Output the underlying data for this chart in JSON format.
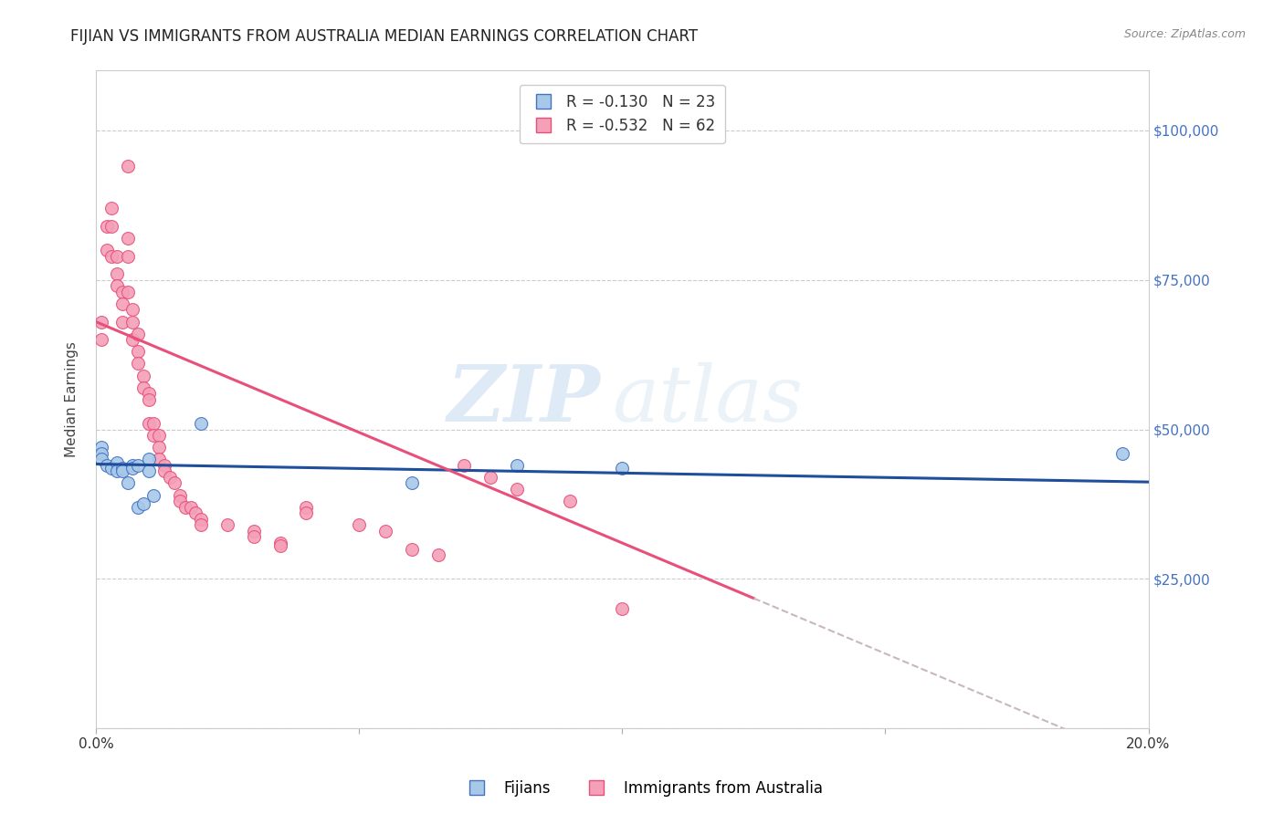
{
  "title": "FIJIAN VS IMMIGRANTS FROM AUSTRALIA MEDIAN EARNINGS CORRELATION CHART",
  "source": "Source: ZipAtlas.com",
  "ylabel": "Median Earnings",
  "xlim": [
    0.0,
    0.2
  ],
  "ylim": [
    0,
    110000
  ],
  "yticks": [
    0,
    25000,
    50000,
    75000,
    100000
  ],
  "ytick_labels_right": [
    "",
    "$25,000",
    "$50,000",
    "$75,000",
    "$100,000"
  ],
  "xticks": [
    0.0,
    0.05,
    0.1,
    0.15,
    0.2
  ],
  "xtick_labels": [
    "0.0%",
    "",
    "",
    "",
    "20.0%"
  ],
  "watermark_zip": "ZIP",
  "watermark_atlas": "atlas",
  "fijian_color": "#a8c8e8",
  "australia_color": "#f4a0b8",
  "fijian_edge": "#4472c4",
  "australia_edge": "#e8507a",
  "trend_fijian_color": "#1f4e9a",
  "trend_australia_color": "#e8507a",
  "trend_extrap_color": "#c8b8bc",
  "background_color": "#ffffff",
  "grid_color": "#cccccc",
  "title_color": "#222222",
  "ylabel_color": "#444444",
  "yticklabel_color": "#4472c4",
  "xticklabel_color": "#333333",
  "title_fontsize": 12,
  "axis_label_fontsize": 11,
  "tick_fontsize": 11,
  "marker_size": 100,
  "fijian_x": [
    0.001,
    0.001,
    0.001,
    0.002,
    0.003,
    0.004,
    0.004,
    0.005,
    0.005,
    0.006,
    0.007,
    0.007,
    0.008,
    0.008,
    0.009,
    0.01,
    0.01,
    0.011,
    0.02,
    0.06,
    0.08,
    0.1,
    0.195
  ],
  "fijian_y": [
    47000,
    46000,
    45000,
    44000,
    43500,
    44500,
    43000,
    43500,
    43000,
    41000,
    44000,
    43500,
    44000,
    37000,
    37500,
    45000,
    43000,
    39000,
    51000,
    41000,
    44000,
    43500,
    46000
  ],
  "australia_x": [
    0.001,
    0.001,
    0.002,
    0.002,
    0.003,
    0.003,
    0.003,
    0.004,
    0.004,
    0.004,
    0.005,
    0.005,
    0.005,
    0.006,
    0.006,
    0.006,
    0.006,
    0.007,
    0.007,
    0.007,
    0.008,
    0.008,
    0.008,
    0.009,
    0.009,
    0.01,
    0.01,
    0.01,
    0.011,
    0.011,
    0.012,
    0.012,
    0.012,
    0.013,
    0.013,
    0.014,
    0.015,
    0.016,
    0.016,
    0.017,
    0.018,
    0.019,
    0.02,
    0.02,
    0.025,
    0.03,
    0.03,
    0.035,
    0.035,
    0.04,
    0.04,
    0.05,
    0.055,
    0.06,
    0.065,
    0.07,
    0.075,
    0.08,
    0.09,
    0.1
  ],
  "australia_y": [
    68000,
    65000,
    84000,
    80000,
    87000,
    84000,
    79000,
    79000,
    76000,
    74000,
    73000,
    71000,
    68000,
    94000,
    82000,
    79000,
    73000,
    70000,
    68000,
    65000,
    66000,
    63000,
    61000,
    59000,
    57000,
    56000,
    55000,
    51000,
    51000,
    49000,
    49000,
    47000,
    45000,
    44000,
    43000,
    42000,
    41000,
    39000,
    38000,
    37000,
    37000,
    36000,
    35000,
    34000,
    34000,
    33000,
    32000,
    31000,
    30500,
    37000,
    36000,
    34000,
    33000,
    30000,
    29000,
    44000,
    42000,
    40000,
    38000,
    20000
  ],
  "trend_fijian_slope": -15000,
  "trend_fijian_intercept": 44200,
  "trend_australia_slope": -370000,
  "trend_australia_intercept": 68000,
  "trend_aus_solid_end": 0.125,
  "trend_aus_dash_start": 0.125,
  "trend_aus_dash_end": 0.195
}
